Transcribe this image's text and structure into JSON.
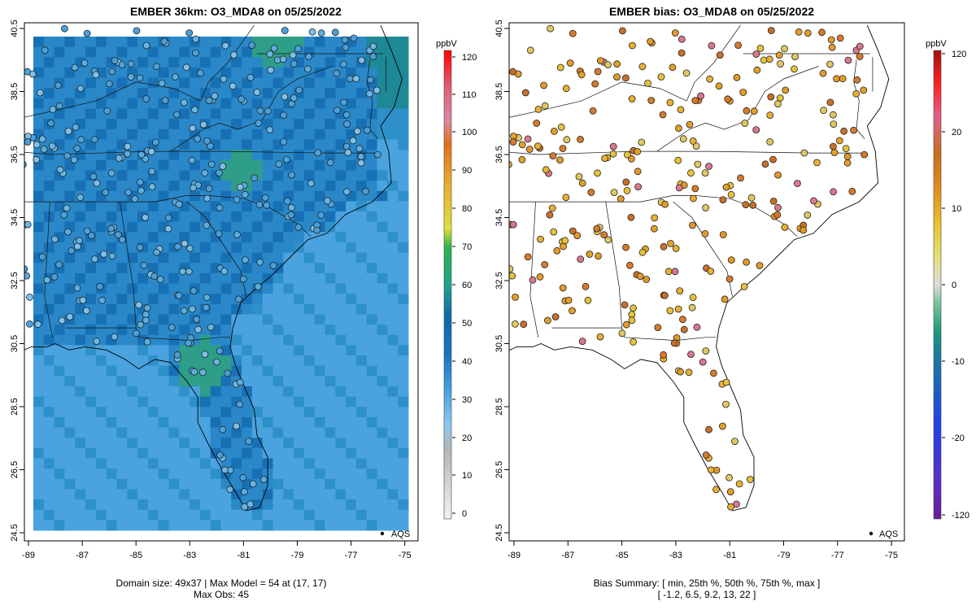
{
  "left_panel": {
    "title": "EMBER 36km: O3_MDA8 on 05/25/2022",
    "footer_line1": "Domain size: 49x37 | Max Model = 54 at (17, 17)",
    "footer_line2": "Max Obs: 45",
    "legend_label": "AQS",
    "colorbar_unit": "ppbV",
    "colorbar_ticks": [
      "0",
      "10",
      "20",
      "30",
      "40",
      "50",
      "60",
      "70",
      "80",
      "90",
      "100",
      "110",
      "120"
    ]
  },
  "right_panel": {
    "title": "EMBER bias: O3_MDA8 on 05/25/2022",
    "footer_line1": "Bias Summary: [ min, 25th %, 50th %, 75th %, max ]",
    "footer_line2": "[ -1.2,   6.5,   9.2,   13,   22 ]",
    "legend_label": "AQS",
    "colorbar_unit": "ppbV",
    "colorbar_ticks": [
      "120",
      "20",
      "10",
      "0",
      "-10",
      "-20",
      "-120"
    ]
  },
  "axes": {
    "x_ticks": [
      "-89",
      "-87",
      "-85",
      "-83",
      "-81",
      "-79",
      "-77",
      "-75"
    ],
    "y_ticks": [
      "24.5",
      "26.5",
      "28.5",
      "30.5",
      "32.5",
      "34.5",
      "36.5",
      "38.5",
      "40.5"
    ]
  },
  "colors": {
    "ocean_light": "#4aa3df",
    "land_mid": "#2a88c8",
    "land_dark": "#1870b4",
    "ozone_peak": "#2e9e88"
  }
}
